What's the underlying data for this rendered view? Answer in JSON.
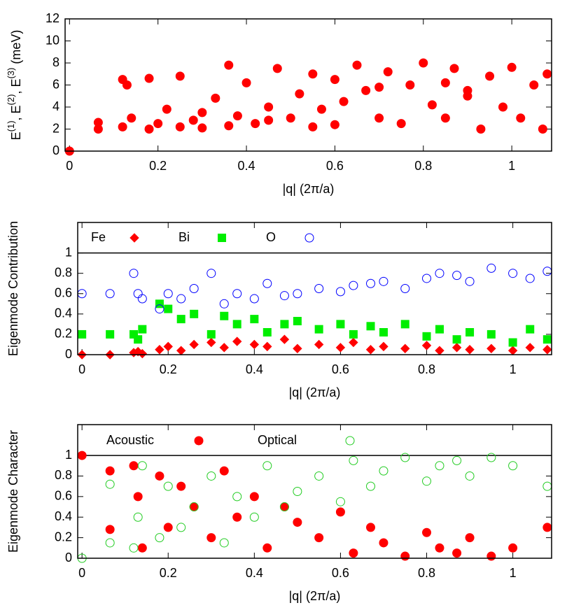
{
  "chart_data": [
    {
      "type": "scatter",
      "xlabel": "|q| (2π/a)",
      "ylabel": [
        "E",
        "(1)",
        ", E",
        "(2)",
        ", E",
        "(3)",
        " (meV)"
      ],
      "xlim": [
        -0.01,
        1.09
      ],
      "xticks": [
        0,
        0.2,
        0.4,
        0.6,
        0.8,
        1
      ],
      "ylim": [
        0,
        12
      ],
      "yticks": [
        0,
        2,
        4,
        6,
        8,
        10,
        12
      ],
      "color": "#ff0000",
      "marker": "circle",
      "filled": true,
      "x": [
        0,
        0.065,
        0.065,
        0.12,
        0.12,
        0.13,
        0.14,
        0.18,
        0.18,
        0.2,
        0.22,
        0.25,
        0.25,
        0.28,
        0.3,
        0.33,
        0.36,
        0.36,
        0.38,
        0.4,
        0.42,
        0.45,
        0.47,
        0.5,
        0.52,
        0.55,
        0.57,
        0.6,
        0.62,
        0.65,
        0.67,
        0.7,
        0.72,
        0.75,
        0.77,
        0.8,
        0.82,
        0.85,
        0.87,
        0.9,
        0.93,
        0.95,
        0.98,
        1.0,
        1.02,
        1.05,
        1.07,
        1.08,
        0.55,
        0.7,
        0.85,
        0.45,
        0.3,
        0.6,
        0.9
      ],
      "values": [
        0,
        2.6,
        2,
        6.5,
        2.2,
        6,
        3,
        6.6,
        2,
        2.5,
        3.8,
        6.8,
        2.2,
        2.8,
        3.5,
        4.8,
        7.8,
        2.3,
        3.2,
        6.2,
        2.5,
        4,
        7.5,
        3,
        5.2,
        7,
        3.8,
        6.5,
        4.5,
        7.8,
        5.5,
        3,
        7.2,
        2.5,
        6,
        8,
        4.2,
        3,
        7.5,
        5,
        2,
        6.8,
        4,
        7.6,
        3,
        6,
        2,
        7,
        2.2,
        5.8,
        6.2,
        2.8,
        2.1,
        2.4,
        5.5
      ]
    },
    {
      "type": "scatter",
      "xlabel": "|q| (2π/a)",
      "ylabel": [
        "Eigenmode Contribution"
      ],
      "xlim": [
        -0.01,
        1.09
      ],
      "xticks": [
        0,
        0.2,
        0.4,
        0.6,
        0.8,
        1
      ],
      "ylim": [
        0,
        1.3
      ],
      "yticks": [
        0,
        0.2,
        0.4,
        0.6,
        0.8,
        1
      ],
      "reference_line": 1,
      "legend": "top",
      "x": [
        0,
        0.065,
        0.12,
        0.13,
        0.14,
        0.18,
        0.2,
        0.23,
        0.26,
        0.3,
        0.33,
        0.36,
        0.4,
        0.43,
        0.47,
        0.5,
        0.55,
        0.6,
        0.63,
        0.67,
        0.7,
        0.75,
        0.8,
        0.83,
        0.87,
        0.9,
        0.95,
        1.0,
        1.04,
        1.08
      ],
      "series": [
        {
          "name": "Fe",
          "color": "#ff0000",
          "marker": "diamond",
          "filled": true,
          "values": [
            0,
            0,
            0.02,
            0.03,
            0.01,
            0.05,
            0.08,
            0.04,
            0.1,
            0.12,
            0.07,
            0.13,
            0.1,
            0.08,
            0.15,
            0.06,
            0.1,
            0.07,
            0.12,
            0.05,
            0.08,
            0.06,
            0.09,
            0.04,
            0.07,
            0.05,
            0.06,
            0.04,
            0.07,
            0.05
          ]
        },
        {
          "name": "Bi",
          "color": "#00ee00",
          "marker": "square",
          "filled": true,
          "values": [
            0.2,
            0.2,
            0.2,
            0.15,
            0.25,
            0.5,
            0.45,
            0.35,
            0.4,
            0.2,
            0.38,
            0.3,
            0.35,
            0.22,
            0.3,
            0.33,
            0.25,
            0.3,
            0.2,
            0.28,
            0.22,
            0.3,
            0.18,
            0.25,
            0.15,
            0.22,
            0.2,
            0.12,
            0.25,
            0.15
          ]
        },
        {
          "name": "O",
          "color": "#0000ff",
          "marker": "circle",
          "filled": false,
          "values": [
            0.6,
            0.6,
            0.8,
            0.6,
            0.55,
            0.45,
            0.6,
            0.55,
            0.65,
            0.8,
            0.5,
            0.6,
            0.55,
            0.7,
            0.58,
            0.6,
            0.65,
            0.62,
            0.68,
            0.7,
            0.72,
            0.65,
            0.75,
            0.8,
            0.78,
            0.72,
            0.85,
            0.8,
            0.75,
            0.82
          ]
        }
      ]
    },
    {
      "type": "scatter",
      "xlabel": "|q| (2π/a)",
      "ylabel": [
        "Eigenmode Character"
      ],
      "xlim": [
        -0.01,
        1.09
      ],
      "xticks": [
        0,
        0.2,
        0.4,
        0.6,
        0.8,
        1
      ],
      "ylim": [
        0,
        1.3
      ],
      "yticks": [
        0,
        0.2,
        0.4,
        0.6,
        0.8,
        1
      ],
      "reference_line": 1,
      "legend": "top",
      "x": [
        0,
        0.065,
        0.065,
        0.12,
        0.13,
        0.14,
        0.18,
        0.2,
        0.23,
        0.26,
        0.3,
        0.33,
        0.36,
        0.4,
        0.43,
        0.47,
        0.5,
        0.55,
        0.6,
        0.63,
        0.67,
        0.7,
        0.75,
        0.8,
        0.83,
        0.87,
        0.9,
        0.95,
        1.0,
        1.08
      ],
      "series": [
        {
          "name": "Acoustic",
          "color": "#ff0000",
          "marker": "circle",
          "filled": true,
          "values": [
            1,
            0.85,
            0.28,
            0.9,
            0.6,
            0.1,
            0.8,
            0.3,
            0.7,
            0.5,
            0.2,
            0.85,
            0.4,
            0.6,
            0.1,
            0.5,
            0.35,
            0.2,
            0.45,
            0.05,
            0.3,
            0.15,
            0.02,
            0.25,
            0.1,
            0.05,
            0.2,
            0.02,
            0.1,
            0.3
          ]
        },
        {
          "name": "Optical",
          "color": "#22cc22",
          "marker": "circle",
          "filled": false,
          "values": [
            0,
            0.15,
            0.72,
            0.1,
            0.4,
            0.9,
            0.2,
            0.7,
            0.3,
            0.5,
            0.8,
            0.15,
            0.6,
            0.4,
            0.9,
            0.5,
            0.65,
            0.8,
            0.55,
            0.95,
            0.7,
            0.85,
            0.98,
            0.75,
            0.9,
            0.95,
            0.8,
            0.98,
            0.9,
            0.7
          ]
        }
      ]
    }
  ]
}
